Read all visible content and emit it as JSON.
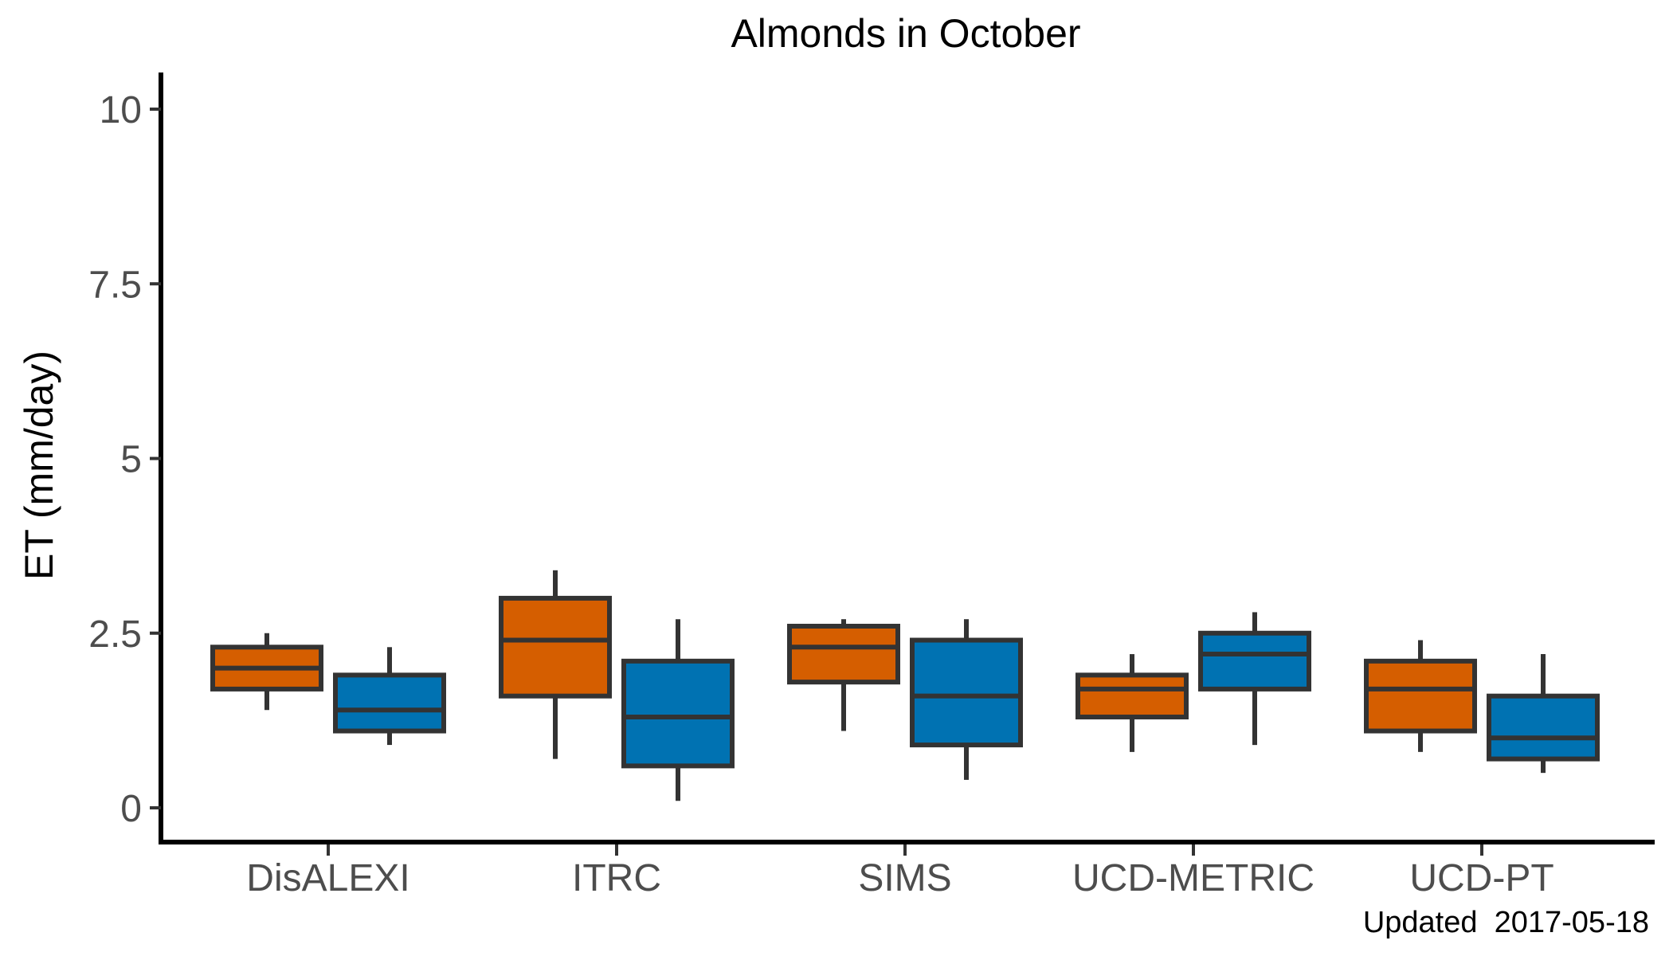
{
  "chart_data": {
    "type": "boxplot",
    "title": "Almonds in October",
    "xlabel": "",
    "ylabel": "ET (mm/day)",
    "ylim": [
      -0.5,
      10.5
    ],
    "yticks": [
      0,
      2.5,
      5,
      7.5,
      10
    ],
    "ytick_labels": [
      "0",
      "2.5",
      "5",
      "7.5",
      "10"
    ],
    "grid": false,
    "legend": "none",
    "categories": [
      "DisALEXI",
      "ITRC",
      "SIMS",
      "UCD-METRIC",
      "UCD-PT"
    ],
    "series": [
      {
        "color": "#D55E00",
        "boxes": [
          {
            "whisker_low": 1.4,
            "q1": 1.7,
            "median": 2.0,
            "q3": 2.3,
            "whisker_high": 2.5
          },
          {
            "whisker_low": 0.7,
            "q1": 1.6,
            "median": 2.4,
            "q3": 3.0,
            "whisker_high": 3.4
          },
          {
            "whisker_low": 1.1,
            "q1": 1.8,
            "median": 2.3,
            "q3": 2.6,
            "whisker_high": 2.7
          },
          {
            "whisker_low": 0.8,
            "q1": 1.3,
            "median": 1.7,
            "q3": 1.9,
            "whisker_high": 2.2
          },
          {
            "whisker_low": 0.8,
            "q1": 1.1,
            "median": 1.7,
            "q3": 2.1,
            "whisker_high": 2.4
          }
        ]
      },
      {
        "color": "#0072B2",
        "boxes": [
          {
            "whisker_low": 0.9,
            "q1": 1.1,
            "median": 1.4,
            "q3": 1.9,
            "whisker_high": 2.3
          },
          {
            "whisker_low": 0.1,
            "q1": 0.6,
            "median": 1.3,
            "q3": 2.1,
            "whisker_high": 2.7
          },
          {
            "whisker_low": 0.4,
            "q1": 0.9,
            "median": 1.6,
            "q3": 2.4,
            "whisker_high": 2.7
          },
          {
            "whisker_low": 0.9,
            "q1": 1.7,
            "median": 2.2,
            "q3": 2.5,
            "whisker_high": 2.8
          },
          {
            "whisker_low": 0.5,
            "q1": 0.7,
            "median": 1.0,
            "q3": 1.6,
            "whisker_high": 2.2
          }
        ]
      }
    ],
    "caption": "Updated  2017-05-18"
  },
  "colors": {
    "box_outline": "#333333",
    "axis": "#000000"
  }
}
